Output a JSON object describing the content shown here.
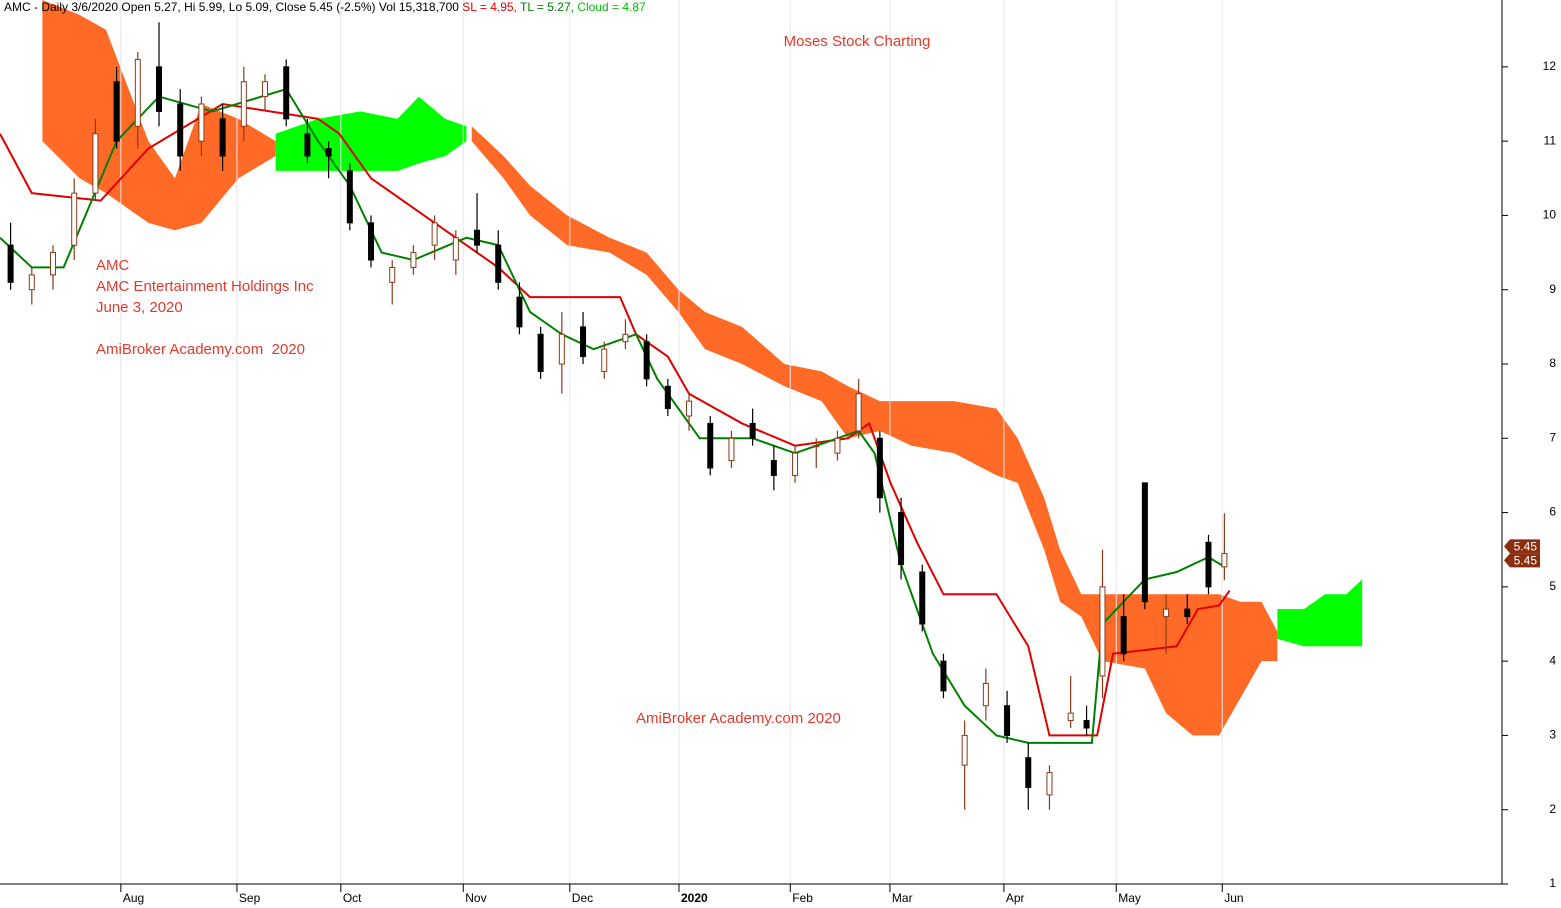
{
  "chart_data": {
    "type": "candlestick",
    "header": {
      "symbol": "AMC - Daily 3/6/2020 Open 5.27, Hi 5.99, Lo 5.09, Close 5.45 (-2.5%) Vol 15,318,700",
      "sl": "SL = 4.95,",
      "tl": "TL = 5.27,",
      "cloud": "Cloud = 4.87"
    },
    "title": "Moses Stock Charting",
    "annotations": [
      "AMC",
      "AMC Entertainment Holdings Inc",
      "June 3, 2020",
      "AmiBroker Academy.com  2020",
      "AmiBroker Academy.com 2020"
    ],
    "xlim": [
      0,
      283
    ],
    "ylim": [
      1,
      12.9
    ],
    "yticks": [
      1,
      2,
      3,
      4,
      5,
      6,
      7,
      8,
      9,
      10,
      11,
      12
    ],
    "xticks": [
      {
        "value": 22.8,
        "label": "Aug"
      },
      {
        "value": 44.7,
        "label": "Sep"
      },
      {
        "value": 64.3,
        "label": "Oct"
      },
      {
        "value": 87.4,
        "label": "Nov"
      },
      {
        "value": 107.5,
        "label": "Dec"
      },
      {
        "value": 128.1,
        "label": "2020"
      },
      {
        "value": 149.1,
        "label": "Feb"
      },
      {
        "value": 167.9,
        "label": "Mar"
      },
      {
        "value": 189.4,
        "label": "Apr"
      },
      {
        "value": 210.6,
        "label": "May"
      },
      {
        "value": 230.6,
        "label": "Jun"
      }
    ],
    "candles": {
      "up_color": "#8b3a1a",
      "down_color": "#000000",
      "x": [
        2,
        6,
        10,
        14,
        18,
        22,
        26,
        30,
        34,
        38,
        42,
        46,
        50,
        54,
        58,
        62,
        66,
        70,
        74,
        78,
        82,
        86,
        90,
        94,
        98,
        102,
        106,
        110,
        114,
        118,
        122,
        126,
        130,
        134,
        138,
        142,
        146,
        150,
        154,
        158,
        162,
        166,
        170,
        174,
        178,
        182,
        186,
        190,
        194,
        198,
        202,
        205,
        208,
        212,
        216,
        220,
        224,
        228,
        231
      ],
      "open": [
        9.6,
        9.0,
        9.2,
        9.6,
        10.3,
        11.8,
        11.2,
        12.0,
        11.5,
        11.0,
        11.3,
        11.2,
        11.6,
        12.0,
        11.1,
        10.9,
        10.6,
        9.9,
        9.1,
        9.3,
        9.6,
        9.4,
        9.8,
        9.6,
        8.9,
        8.4,
        8.0,
        8.5,
        7.9,
        8.3,
        8.3,
        7.7,
        7.3,
        7.2,
        6.7,
        7.2,
        6.7,
        6.5,
        6.9,
        6.8,
        7.1,
        7.0,
        6.0,
        5.2,
        4.0,
        2.6,
        3.4,
        3.4,
        2.7,
        2.2,
        3.2,
        3.2,
        3.8,
        4.6,
        6.4,
        4.6,
        4.7,
        5.6,
        5.27
      ],
      "high": [
        9.9,
        9.3,
        9.6,
        10.5,
        11.3,
        12.0,
        12.2,
        12.6,
        11.7,
        11.6,
        11.5,
        12.0,
        11.9,
        12.1,
        11.3,
        11.0,
        10.7,
        10.0,
        9.4,
        9.6,
        10.0,
        9.8,
        10.3,
        9.8,
        9.1,
        8.5,
        8.7,
        8.7,
        8.3,
        8.6,
        8.4,
        7.8,
        7.6,
        7.3,
        7.1,
        7.4,
        6.9,
        6.9,
        7.0,
        7.1,
        7.8,
        7.1,
        6.2,
        5.3,
        4.1,
        3.2,
        3.9,
        3.6,
        2.9,
        2.6,
        3.8,
        3.4,
        5.5,
        4.9,
        6.4,
        4.9,
        4.9,
        5.7,
        5.99
      ],
      "low": [
        9.0,
        8.8,
        9.0,
        9.4,
        10.2,
        10.9,
        10.9,
        11.2,
        10.6,
        10.8,
        10.6,
        11.0,
        11.4,
        11.2,
        10.7,
        10.5,
        9.8,
        9.3,
        8.8,
        9.2,
        9.4,
        9.2,
        9.5,
        9.0,
        8.4,
        7.8,
        7.6,
        8.0,
        7.8,
        8.2,
        7.7,
        7.3,
        7.1,
        6.5,
        6.6,
        6.9,
        6.3,
        6.4,
        6.6,
        6.7,
        7.0,
        6.0,
        5.1,
        4.4,
        3.5,
        2.0,
        3.2,
        2.9,
        2.0,
        2.0,
        3.1,
        3.0,
        3.5,
        4.0,
        4.7,
        4.1,
        4.5,
        4.9,
        5.09
      ],
      "close": [
        9.1,
        9.2,
        9.5,
        10.3,
        11.1,
        11.0,
        12.1,
        11.4,
        10.8,
        11.5,
        10.8,
        11.8,
        11.8,
        11.3,
        10.8,
        10.8,
        9.9,
        9.4,
        9.3,
        9.5,
        9.9,
        9.7,
        9.6,
        9.1,
        8.5,
        7.9,
        8.4,
        8.1,
        8.2,
        8.4,
        7.8,
        7.4,
        7.5,
        6.6,
        7.0,
        7.0,
        6.5,
        6.8,
        6.9,
        7.0,
        7.6,
        6.2,
        5.3,
        4.5,
        3.6,
        3.0,
        3.7,
        3.0,
        2.3,
        2.5,
        3.3,
        3.1,
        5.0,
        4.1,
        4.8,
        4.7,
        4.6,
        5.0,
        5.45
      ]
    },
    "lines": [
      {
        "name": "SL",
        "color": "#e00000",
        "x": [
          0,
          6,
          19,
          28,
          42,
          60,
          64,
          70,
          80,
          94,
          100,
          117,
          120,
          126,
          130,
          140,
          150,
          160,
          164,
          168,
          173,
          178,
          188,
          194,
          198,
          207,
          210,
          222,
          226,
          230,
          232
        ],
        "values": [
          11.1,
          10.3,
          10.2,
          10.9,
          11.5,
          11.3,
          11.1,
          10.5,
          10.0,
          9.3,
          8.9,
          8.9,
          8.4,
          8.1,
          7.6,
          7.2,
          6.9,
          7.0,
          7.2,
          6.4,
          5.6,
          4.9,
          4.9,
          4.2,
          3.0,
          3.0,
          4.1,
          4.2,
          4.7,
          4.75,
          4.95
        ]
      },
      {
        "name": "TL",
        "color": "#008000",
        "x": [
          0,
          6,
          12,
          22,
          30,
          40,
          54,
          60,
          66,
          72,
          78,
          88,
          94,
          100,
          106,
          112,
          120,
          124,
          132,
          142,
          150,
          158,
          162,
          165,
          170,
          176,
          182,
          188,
          194,
          198,
          206,
          208,
          216,
          222,
          228,
          231
        ],
        "values": [
          9.7,
          9.3,
          9.3,
          11.0,
          11.6,
          11.4,
          11.7,
          11.0,
          10.4,
          9.5,
          9.4,
          9.7,
          9.6,
          8.7,
          8.4,
          8.2,
          8.4,
          7.8,
          7.0,
          7.0,
          6.8,
          7.0,
          7.1,
          6.8,
          5.3,
          4.1,
          3.4,
          3.0,
          2.9,
          2.9,
          2.9,
          4.5,
          5.1,
          5.2,
          5.4,
          5.27
        ]
      }
    ],
    "cloud": [
      {
        "color": "#ff6a26",
        "x": [
          8,
          15,
          20,
          28,
          33,
          38,
          45,
          52
        ],
        "upper": [
          12.9,
          12.7,
          12.5,
          11.0,
          10.5,
          11.5,
          11.3,
          11.0
        ],
        "lower": [
          11.0,
          10.5,
          10.3,
          9.9,
          9.8,
          9.9,
          10.5,
          10.8
        ]
      },
      {
        "color": "#00ff00",
        "x": [
          52,
          60,
          68,
          75,
          79,
          84,
          88
        ],
        "upper": [
          11.1,
          11.3,
          11.4,
          11.3,
          11.6,
          11.3,
          11.2
        ],
        "lower": [
          10.6,
          10.6,
          10.6,
          10.6,
          10.7,
          10.8,
          11.0
        ]
      },
      {
        "color": "#ff6a26",
        "x": [
          89,
          95,
          100,
          107,
          115,
          122,
          128,
          133,
          140,
          148,
          155,
          160,
          166,
          172,
          180,
          188,
          192,
          197,
          200,
          204,
          208,
          216,
          220,
          225,
          230,
          234,
          238,
          241
        ],
        "upper": [
          11.2,
          10.8,
          10.4,
          10.0,
          9.7,
          9.5,
          9.0,
          8.7,
          8.5,
          8.0,
          7.9,
          7.7,
          7.5,
          7.5,
          7.5,
          7.4,
          7.0,
          6.2,
          5.5,
          4.9,
          4.9,
          4.9,
          4.9,
          4.9,
          4.9,
          4.8,
          4.8,
          4.4
        ],
        "lower": [
          11.0,
          10.5,
          10.0,
          9.6,
          9.5,
          9.2,
          8.7,
          8.2,
          8.0,
          7.7,
          7.5,
          7.0,
          7.1,
          6.9,
          6.8,
          6.5,
          6.4,
          5.5,
          4.8,
          4.6,
          4.0,
          3.9,
          3.3,
          3.0,
          3.0,
          3.5,
          4.0,
          4.0
        ]
      },
      {
        "color": "#00ff00",
        "x": [
          241,
          246,
          250,
          254,
          257
        ],
        "upper": [
          4.7,
          4.7,
          4.9,
          4.9,
          5.1
        ],
        "lower": [
          4.3,
          4.2,
          4.2,
          4.2,
          4.2
        ]
      }
    ],
    "price_tags": [
      5.45,
      5.45
    ]
  }
}
